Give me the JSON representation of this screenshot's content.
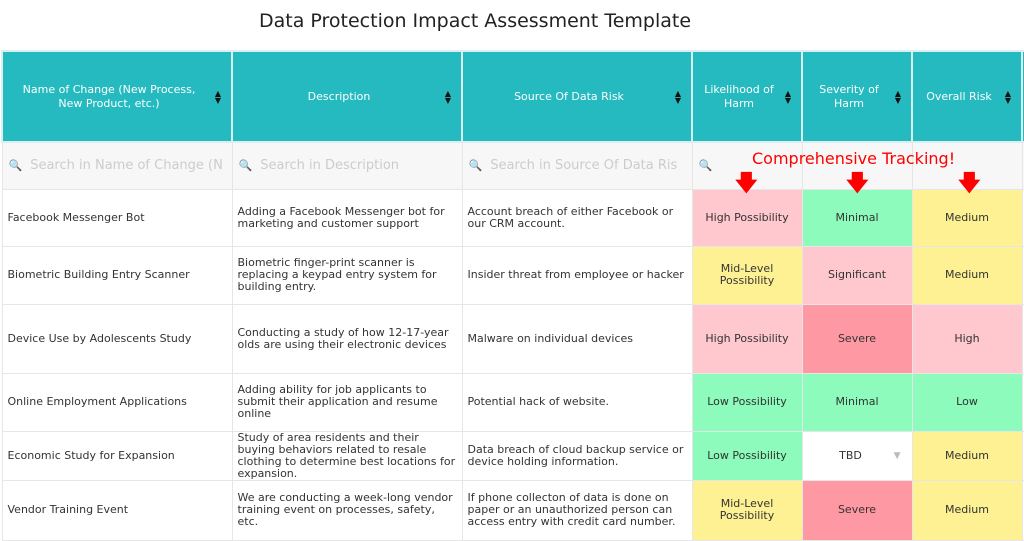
{
  "title": "Data Protection Impact Assessment Template",
  "columns": [
    "Name of Change (New Process, New Product, etc.)",
    "Description",
    "Source Of Data Risk",
    "Likelihood of Harm",
    "Severity of Harm",
    "Overall Risk"
  ],
  "search_placeholders": [
    "Search in Name of Change (N",
    "Search in Description",
    "Search in Source Of Data Ris",
    ""
  ],
  "callout": "Comprehensive Tracking!",
  "colors": {
    "header": "#24babf",
    "high_possibility": "#ffc7ce",
    "low": "#8cfbbb",
    "medium": "#fef193",
    "severe": "#fe98a3",
    "callout": "#ff0000"
  },
  "rows": [
    {
      "name": "Facebook Messenger Bot",
      "description": "Adding a Facebook Messenger bot for marketing and customer support",
      "source": "Account breach of either Facebook or our CRM account.",
      "likelihood": "High Possibility",
      "severity": "Minimal",
      "overall": "Medium"
    },
    {
      "name": "Biometric Building Entry Scanner",
      "description": "Biometric finger-print scanner is replacing a keypad entry system for building entry.",
      "source": "Insider threat from employee or hacker",
      "likelihood": "Mid-Level Possibility",
      "severity": "Significant",
      "overall": "Medium"
    },
    {
      "name": "Device Use by Adolescents Study",
      "description": "Conducting a study of how 12-17-year olds are using their electronic devices",
      "source": "Malware on individual devices",
      "likelihood": "High Possibility",
      "severity": "Severe",
      "overall": "High"
    },
    {
      "name": "Online Employment Applications",
      "description": "Adding ability for job applicants to submit their application and resume online",
      "source": "Potential hack of website.",
      "likelihood": "Low Possibility",
      "severity": "Minimal",
      "overall": "Low"
    },
    {
      "name": "Economic Study for Expansion",
      "description": "Study of area residents and their buying behaviors related to resale clothing to determine best locations for expansion.",
      "source": "Data breach of cloud backup service or device holding information.",
      "likelihood": "Low Possibility",
      "severity": "TBD",
      "overall": "Medium"
    },
    {
      "name": "Vendor Training Event",
      "description": "We are conducting a week-long vendor training event on processes, safety, etc.",
      "source": "If phone collecton of data is done on paper or an unauthorized person can access entry with credit card number.",
      "likelihood": "Mid-Level Possibility",
      "severity": "Severe",
      "overall": "Medium"
    }
  ]
}
